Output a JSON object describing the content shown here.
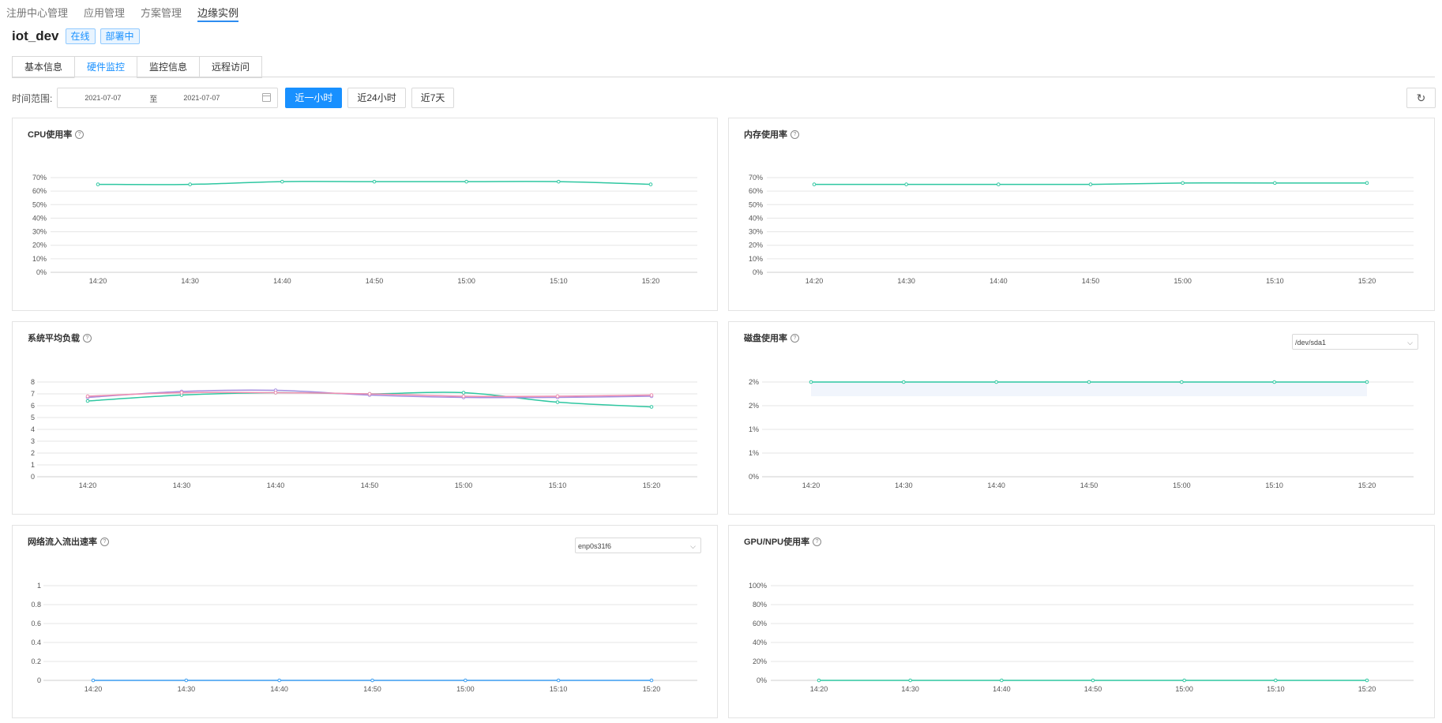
{
  "topnav": {
    "items": [
      "注册中心管理",
      "应用管理",
      "方案管理",
      "边缘实例"
    ],
    "active_index": 3
  },
  "device": {
    "name": "iot_dev",
    "status_online": "在线",
    "status_deploying": "部署中"
  },
  "tabs": {
    "items": [
      "基本信息",
      "硬件监控",
      "监控信息",
      "远程访问"
    ],
    "active_index": 1
  },
  "time_range": {
    "label": "时间范围:",
    "start": "2021-07-07",
    "separator": "至",
    "end": "2021-07-07",
    "buttons": [
      "近一小时",
      "近24小时",
      "近7天"
    ],
    "active_button_index": 0
  },
  "colors": {
    "accent": "#1890ff",
    "teal": "#2fc7a1",
    "purple": "#a58ee0",
    "pink": "#f08fb0",
    "blue": "#3a9cf0"
  },
  "panels": {
    "cpu": {
      "title": "CPU使用率"
    },
    "memory": {
      "title": "内存使用率"
    },
    "load": {
      "title": "系统平均负载"
    },
    "disk": {
      "title": "磁盘使用率",
      "select_value": "/dev/sda1"
    },
    "network": {
      "title": "网络流入流出速率",
      "select_value": "enp0s31f6"
    },
    "gpu": {
      "title": "GPU/NPU使用率"
    }
  },
  "chart_data": [
    {
      "id": "cpu",
      "type": "line",
      "categories": [
        "14:20",
        "14:30",
        "14:40",
        "14:50",
        "15:00",
        "15:10",
        "15:20"
      ],
      "y_ticks": [
        "0%",
        "10%",
        "20%",
        "30%",
        "40%",
        "50%",
        "60%",
        "70%"
      ],
      "ylim": [
        0,
        70
      ],
      "grid": true,
      "series": [
        {
          "color": "#2fc7a1",
          "values": [
            65,
            65,
            67,
            67,
            67,
            67,
            65
          ]
        }
      ]
    },
    {
      "id": "memory",
      "type": "line",
      "categories": [
        "14:20",
        "14:30",
        "14:40",
        "14:50",
        "15:00",
        "15:10",
        "15:20"
      ],
      "y_ticks": [
        "0%",
        "10%",
        "20%",
        "30%",
        "40%",
        "50%",
        "60%",
        "70%"
      ],
      "ylim": [
        0,
        70
      ],
      "grid": true,
      "series": [
        {
          "color": "#2fc7a1",
          "values": [
            65,
            65,
            65,
            65,
            66,
            66,
            66
          ]
        }
      ]
    },
    {
      "id": "load",
      "type": "line",
      "categories": [
        "14:20",
        "14:30",
        "14:40",
        "14:50",
        "15:00",
        "15:10",
        "15:20"
      ],
      "y_ticks": [
        "0",
        "1",
        "2",
        "3",
        "4",
        "5",
        "6",
        "7",
        "8"
      ],
      "ylim": [
        0,
        8
      ],
      "grid": true,
      "series": [
        {
          "color": "#2fc7a1",
          "values": [
            6.4,
            6.9,
            7.1,
            7.0,
            7.1,
            6.3,
            5.9
          ]
        },
        {
          "color": "#a58ee0",
          "values": [
            6.7,
            7.2,
            7.3,
            6.9,
            6.7,
            6.7,
            6.8
          ]
        },
        {
          "color": "#f08fb0",
          "values": [
            6.8,
            7.1,
            7.1,
            7.0,
            6.8,
            6.8,
            6.9
          ]
        }
      ]
    },
    {
      "id": "disk",
      "type": "area",
      "categories": [
        "14:20",
        "14:30",
        "14:40",
        "14:50",
        "15:00",
        "15:10",
        "15:20"
      ],
      "y_ticks": [
        "0%",
        "1%",
        "1%",
        "2%",
        "2%"
      ],
      "ylim": [
        0,
        2
      ],
      "grid": true,
      "series": [
        {
          "color": "#2fc7a1",
          "values": [
            2,
            2,
            2,
            2,
            2,
            2,
            2
          ]
        }
      ]
    },
    {
      "id": "network",
      "type": "line",
      "categories": [
        "14:20",
        "14:30",
        "14:40",
        "14:50",
        "15:00",
        "15:10",
        "15:20"
      ],
      "y_ticks": [
        "0",
        "0.2",
        "0.4",
        "0.6",
        "0.8",
        "1"
      ],
      "ylim": [
        0,
        1
      ],
      "grid": true,
      "series": [
        {
          "color": "#3a9cf0",
          "values": [
            0,
            0,
            0,
            0,
            0,
            0,
            0
          ]
        }
      ]
    },
    {
      "id": "gpu",
      "type": "line",
      "categories": [
        "14:20",
        "14:30",
        "14:40",
        "14:50",
        "15:00",
        "15:10",
        "15:20"
      ],
      "y_ticks": [
        "0%",
        "20%",
        "40%",
        "60%",
        "80%",
        "100%"
      ],
      "ylim": [
        0,
        100
      ],
      "grid": true,
      "series": [
        {
          "color": "#2fc7a1",
          "values": [
            0,
            0,
            0,
            0,
            0,
            0,
            0
          ]
        }
      ]
    }
  ]
}
